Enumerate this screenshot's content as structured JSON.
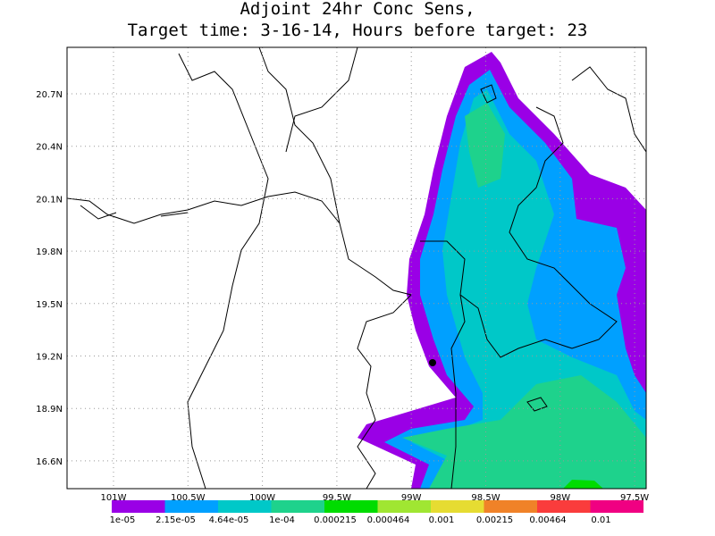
{
  "title": [
    "Adjoint 24hr Conc Sens,",
    "Target time: 3-16-14, Hours before target: 23"
  ],
  "lat_labels": [
    "20.7N",
    "20.4N",
    "20.1N",
    "19.8N",
    "19.5N",
    "19.2N",
    "18.9N",
    "16.6N"
  ],
  "lon_labels": [
    "101W",
    "100.5W",
    "100W",
    "99.5W",
    "99W",
    "98.5W",
    "98W",
    "97.5W"
  ],
  "colorbar": {
    "colors": [
      "#9a00e6",
      "#00a0ff",
      "#00c8c8",
      "#1ed28c",
      "#00dc00",
      "#a0e632",
      "#e6dc32",
      "#f08228",
      "#fa3c3c",
      "#f00082"
    ],
    "labels": [
      "1e-05",
      "2.15e-05",
      "4.64e-05",
      "1e-04",
      "0.000215",
      "0.000464",
      "0.001",
      "0.00215",
      "0.00464",
      "0.01"
    ]
  }
}
